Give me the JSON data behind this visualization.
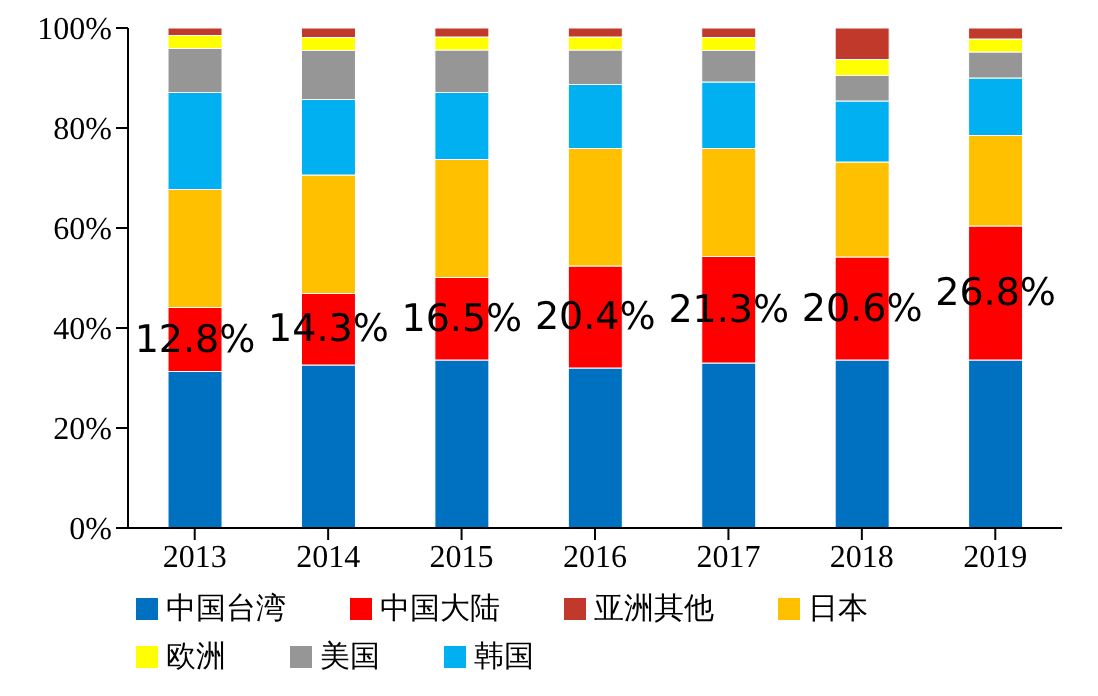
{
  "chart_data": {
    "type": "bar",
    "stacked": true,
    "categories": [
      "2013",
      "2014",
      "2015",
      "2016",
      "2017",
      "2018",
      "2019"
    ],
    "series": [
      {
        "name": "中国台湾",
        "color": "#0070c0",
        "values": [
          31.3,
          32.6,
          33.6,
          32.0,
          33.0,
          33.6,
          33.6
        ]
      },
      {
        "name": "中国大陆",
        "color": "#ff0000",
        "values": [
          12.8,
          14.3,
          16.5,
          20.4,
          21.3,
          20.6,
          26.8
        ],
        "value_labels": [
          "12.8%",
          "14.3%",
          "16.5%",
          "20.4%",
          "21.3%",
          "20.6%",
          "26.8%"
        ]
      },
      {
        "name": "日本",
        "color": "#ffc000",
        "values": [
          23.6,
          23.7,
          23.6,
          23.5,
          21.6,
          19.0,
          18.1
        ]
      },
      {
        "name": "韩国",
        "color": "#00b0f0",
        "values": [
          19.4,
          15.1,
          13.4,
          12.8,
          13.3,
          12.2,
          11.5
        ]
      },
      {
        "name": "美国",
        "color": "#969696",
        "values": [
          8.8,
          9.8,
          8.5,
          6.9,
          6.3,
          5.1,
          5.2
        ]
      },
      {
        "name": "欧洲",
        "color": "#ffff00",
        "values": [
          2.6,
          2.6,
          2.6,
          2.6,
          2.6,
          3.2,
          2.6
        ]
      },
      {
        "name": "亚洲其他",
        "color": "#c0392b",
        "values": [
          1.5,
          1.9,
          1.8,
          1.8,
          1.9,
          6.3,
          2.2
        ]
      }
    ],
    "ylim": [
      0,
      100
    ],
    "yticks": [
      {
        "value": 0,
        "label": "0%"
      },
      {
        "value": 20,
        "label": "20%"
      },
      {
        "value": 40,
        "label": "40%"
      },
      {
        "value": 60,
        "label": "60%"
      },
      {
        "value": 80,
        "label": "80%"
      },
      {
        "value": 100,
        "label": "100%"
      }
    ],
    "grid": false,
    "legend": "bottom"
  }
}
